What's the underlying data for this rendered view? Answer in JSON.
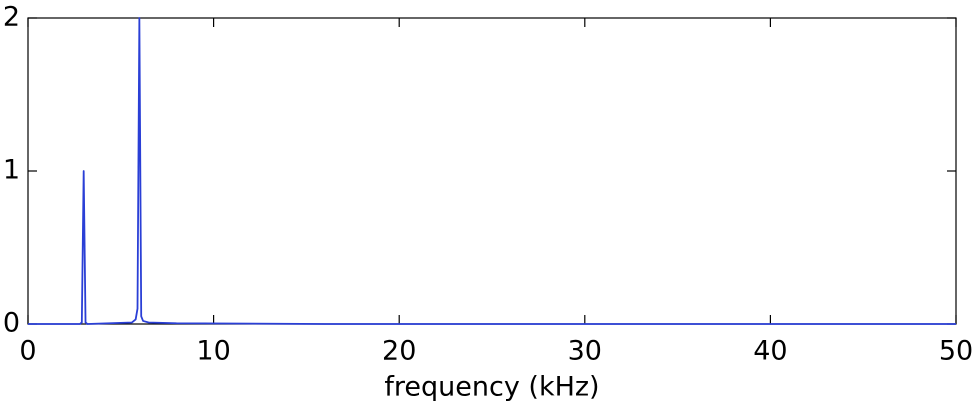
{
  "chart_data": {
    "type": "line",
    "xlabel": "frequency (kHz)",
    "x": [
      0,
      2.8,
      2.9,
      3,
      3.1,
      3.2,
      5.6,
      5.8,
      5.9,
      6,
      6.1,
      6.2,
      6.5,
      8,
      16,
      50
    ],
    "series": [
      {
        "color": "#2a3fd6",
        "values": [
          0,
          0,
          0.01,
          1,
          0.01,
          0,
          0.01,
          0.03,
          0.1,
          2,
          0.05,
          0.02,
          0.01,
          0.005,
          0,
          0
        ]
      }
    ],
    "xlim": [
      0,
      50
    ],
    "xticks": [
      0,
      10,
      20,
      30,
      40,
      50
    ],
    "ylim": [
      0,
      2
    ],
    "yticks": [
      0,
      1,
      2
    ]
  }
}
